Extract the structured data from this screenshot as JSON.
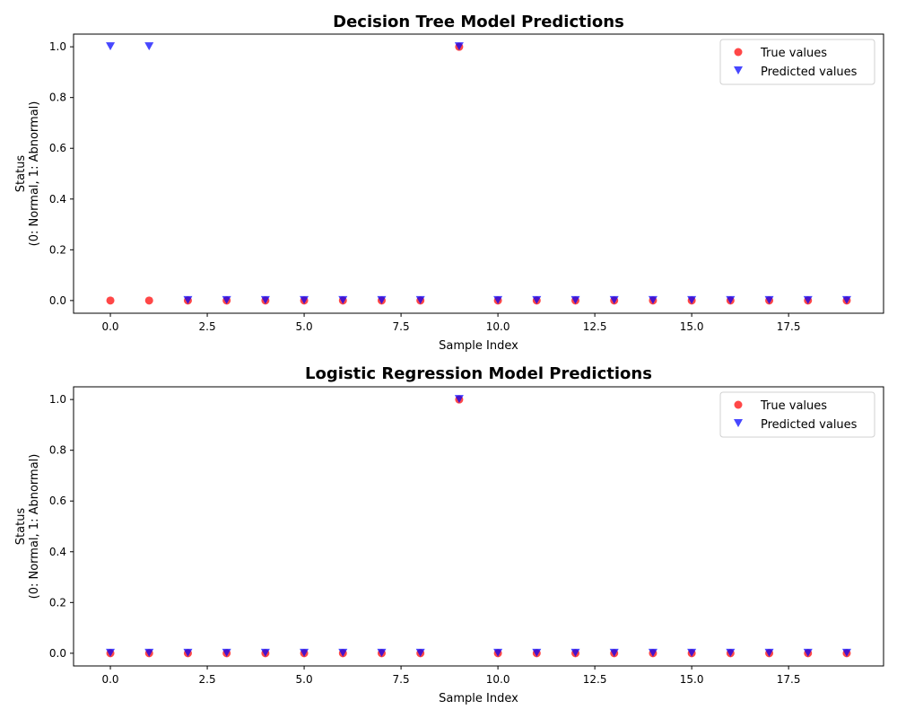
{
  "colors": {
    "true": "#ff0000",
    "predicted": "#0000ff",
    "marker_alpha": 0.72
  },
  "chart_data": [
    {
      "type": "scatter",
      "title": "Decision Tree Model Predictions",
      "xlabel": "Sample Index",
      "ylabel_lines": [
        "Status",
        "(0: Normal, 1: Abnormal)"
      ],
      "xlim": [
        -0.95,
        19.95
      ],
      "ylim": [
        -0.05,
        1.05
      ],
      "x_ticks": [
        "0.0",
        "2.5",
        "5.0",
        "7.5",
        "10.0",
        "12.5",
        "15.0",
        "17.5"
      ],
      "y_ticks": [
        "0.0",
        "0.2",
        "0.4",
        "0.6",
        "0.8",
        "1.0"
      ],
      "grid": false,
      "legend_position": "upper-right",
      "x": [
        0,
        1,
        2,
        3,
        4,
        5,
        6,
        7,
        8,
        9,
        10,
        11,
        12,
        13,
        14,
        15,
        16,
        17,
        18,
        19
      ],
      "series": [
        {
          "name": "True values",
          "marker": "circle",
          "color": "#ff0000",
          "values": [
            0,
            0,
            0,
            0,
            0,
            0,
            0,
            0,
            0,
            1,
            0,
            0,
            0,
            0,
            0,
            0,
            0,
            0,
            0,
            0
          ]
        },
        {
          "name": "Predicted values",
          "marker": "triangle-down",
          "color": "#0000ff",
          "values": [
            1,
            1,
            0,
            0,
            0,
            0,
            0,
            0,
            0,
            1,
            0,
            0,
            0,
            0,
            0,
            0,
            0,
            0,
            0,
            0
          ]
        }
      ]
    },
    {
      "type": "scatter",
      "title": "Logistic Regression Model Predictions",
      "xlabel": "Sample Index",
      "ylabel_lines": [
        "Status",
        "(0: Normal, 1: Abnormal)"
      ],
      "xlim": [
        -0.95,
        19.95
      ],
      "ylim": [
        -0.05,
        1.05
      ],
      "x_ticks": [
        "0.0",
        "2.5",
        "5.0",
        "7.5",
        "10.0",
        "12.5",
        "15.0",
        "17.5"
      ],
      "y_ticks": [
        "0.0",
        "0.2",
        "0.4",
        "0.6",
        "0.8",
        "1.0"
      ],
      "grid": false,
      "legend_position": "upper-right",
      "x": [
        0,
        1,
        2,
        3,
        4,
        5,
        6,
        7,
        8,
        9,
        10,
        11,
        12,
        13,
        14,
        15,
        16,
        17,
        18,
        19
      ],
      "series": [
        {
          "name": "True values",
          "marker": "circle",
          "color": "#ff0000",
          "values": [
            0,
            0,
            0,
            0,
            0,
            0,
            0,
            0,
            0,
            1,
            0,
            0,
            0,
            0,
            0,
            0,
            0,
            0,
            0,
            0
          ]
        },
        {
          "name": "Predicted values",
          "marker": "triangle-down",
          "color": "#0000ff",
          "values": [
            0,
            0,
            0,
            0,
            0,
            0,
            0,
            0,
            0,
            1,
            0,
            0,
            0,
            0,
            0,
            0,
            0,
            0,
            0,
            0
          ]
        }
      ]
    }
  ]
}
